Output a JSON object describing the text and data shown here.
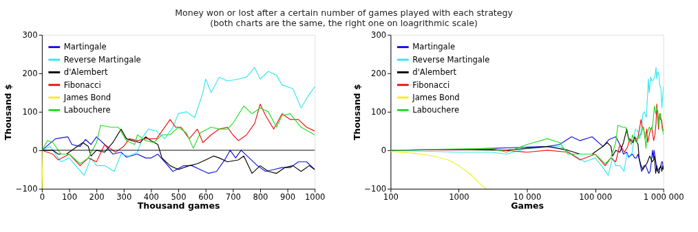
{
  "chart_data": [
    {
      "type": "line",
      "title": "Money won or lost after a certain number of games played with each strategy",
      "subtitle": "(both charts are the same, the right one on loagrithmic scale)",
      "xlabel": "Thousand games",
      "ylabel": "Thousand $",
      "xlim": [
        0,
        1000
      ],
      "ylim": [
        -100,
        300
      ],
      "xticks": [
        0,
        100,
        200,
        300,
        400,
        500,
        600,
        700,
        800,
        900,
        1000
      ],
      "yticks": [
        -100,
        0,
        100,
        200,
        300
      ],
      "grid": false,
      "legend": "top left",
      "marker": "none",
      "line_style": "solid",
      "ref_lines": [
        {
          "axis": "y",
          "value": 0,
          "color": "#000000"
        }
      ],
      "series": [
        {
          "name": "Martingale",
          "color": "#1010e0",
          "x": [
            0,
            50,
            95,
            110,
            140,
            160,
            180,
            200,
            230,
            260,
            290,
            310,
            350,
            380,
            400,
            425,
            450,
            480,
            520,
            550,
            580,
            610,
            640,
            670,
            690,
            710,
            730,
            760,
            790,
            820,
            850,
            880,
            910,
            940,
            970,
            1000
          ],
          "values": [
            0,
            30,
            35,
            15,
            10,
            28,
            15,
            35,
            15,
            -10,
            -5,
            -18,
            -10,
            -20,
            -20,
            -10,
            -30,
            -55,
            -40,
            -40,
            -50,
            -60,
            -55,
            -25,
            0,
            -20,
            0,
            -20,
            -40,
            -55,
            -50,
            -45,
            -45,
            -30,
            -30,
            -50
          ]
        },
        {
          "name": "Reverse Martingale",
          "color": "#33e6f0",
          "x": [
            0,
            30,
            70,
            100,
            130,
            155,
            180,
            200,
            230,
            265,
            290,
            320,
            350,
            370,
            390,
            420,
            450,
            480,
            500,
            530,
            560,
            590,
            600,
            620,
            650,
            680,
            720,
            750,
            780,
            800,
            830,
            860,
            880,
            920,
            950,
            975,
            1000
          ],
          "values": [
            0,
            10,
            -30,
            -20,
            -45,
            -65,
            -20,
            -40,
            -40,
            -55,
            -10,
            -15,
            -5,
            35,
            55,
            50,
            30,
            60,
            95,
            100,
            85,
            150,
            185,
            150,
            190,
            180,
            185,
            190,
            215,
            185,
            205,
            195,
            170,
            160,
            110,
            140,
            165
          ]
        },
        {
          "name": "d'Alembert",
          "color": "#000000",
          "x": [
            0,
            40,
            60,
            90,
            130,
            150,
            170,
            180,
            200,
            230,
            260,
            290,
            310,
            330,
            360,
            380,
            400,
            425,
            440,
            470,
            500,
            540,
            570,
            600,
            630,
            650,
            680,
            720,
            740,
            770,
            800,
            830,
            860,
            890,
            920,
            950,
            980,
            1000
          ],
          "values": [
            0,
            0,
            -10,
            -10,
            10,
            20,
            10,
            -15,
            0,
            -5,
            20,
            55,
            30,
            25,
            20,
            35,
            25,
            15,
            -20,
            -40,
            -50,
            -40,
            -35,
            -25,
            -15,
            -20,
            -30,
            -25,
            -15,
            -60,
            -40,
            -55,
            -60,
            -45,
            -40,
            -55,
            -40,
            -50
          ]
        },
        {
          "name": "Fibonacci",
          "color": "#ee1111",
          "x": [
            0,
            40,
            60,
            100,
            140,
            170,
            200,
            230,
            270,
            300,
            320,
            350,
            380,
            420,
            450,
            470,
            490,
            510,
            540,
            570,
            590,
            620,
            650,
            680,
            700,
            720,
            750,
            780,
            800,
            820,
            850,
            880,
            910,
            940,
            970,
            1000
          ],
          "values": [
            0,
            -10,
            -25,
            -10,
            -40,
            -20,
            -30,
            15,
            -5,
            10,
            30,
            25,
            30,
            30,
            60,
            80,
            60,
            60,
            30,
            55,
            20,
            40,
            55,
            60,
            40,
            25,
            40,
            70,
            120,
            90,
            55,
            95,
            80,
            80,
            60,
            50
          ]
        },
        {
          "name": "James Bond",
          "color": "#f0f020",
          "x": [
            0.1,
            2.5
          ],
          "values": [
            0,
            -100
          ]
        },
        {
          "name": "Labouchere",
          "color": "#22dd22",
          "x": [
            0,
            20,
            40,
            70,
            100,
            140,
            170,
            200,
            215,
            250,
            280,
            310,
            340,
            350,
            380,
            410,
            440,
            470,
            500,
            530,
            555,
            580,
            620,
            650,
            680,
            700,
            740,
            770,
            800,
            830,
            860,
            880,
            910,
            950,
            1000
          ],
          "values": [
            0,
            25,
            20,
            -10,
            -10,
            -35,
            -20,
            20,
            65,
            60,
            60,
            25,
            15,
            40,
            25,
            20,
            40,
            40,
            60,
            45,
            5,
            45,
            60,
            55,
            55,
            70,
            115,
            95,
            110,
            100,
            60,
            90,
            95,
            60,
            40
          ]
        }
      ]
    },
    {
      "type": "line",
      "xlabel": "Games",
      "ylabel": "Thousand $",
      "log": "x",
      "xlim": [
        100,
        1000000
      ],
      "ylim": [
        -100,
        300
      ],
      "xticks": [
        100,
        1000,
        {
          "value": 10000,
          "label": "10 000"
        },
        {
          "value": 100000,
          "label": "100 000"
        },
        {
          "value": 1000000,
          "label": "1 000 000"
        }
      ],
      "yticks": [
        -100,
        0,
        100,
        200,
        300
      ],
      "grid": false,
      "legend": "top left",
      "marker": "none",
      "line_style": "solid",
      "series": [
        {
          "name": "Martingale",
          "color": "#1010e0",
          "x": [
            100,
            1000,
            3000,
            10000,
            20000,
            30000,
            45000,
            60000,
            90000,
            130000,
            160000,
            200000,
            230000,
            260000,
            290000,
            310000,
            350000,
            380000,
            400000,
            425000,
            450000,
            480000,
            520000,
            550000,
            580000,
            610000,
            640000,
            670000,
            690000,
            710000,
            730000,
            760000,
            790000,
            820000,
            850000,
            880000,
            910000,
            940000,
            970000,
            1000000
          ],
          "values": [
            0,
            2,
            5,
            8,
            10,
            15,
            35,
            25,
            35,
            10,
            28,
            35,
            15,
            -10,
            -5,
            -18,
            -10,
            -20,
            -20,
            -10,
            -30,
            -55,
            -40,
            -40,
            -50,
            -60,
            -55,
            -25,
            0,
            -20,
            0,
            -20,
            -40,
            -55,
            -50,
            -45,
            -45,
            -30,
            -30,
            -50
          ]
        },
        {
          "name": "Reverse Martingale",
          "color": "#33e6f0",
          "x": [
            100,
            1000,
            3000,
            5000,
            10000,
            30000,
            70000,
            100000,
            130000,
            155000,
            180000,
            200000,
            230000,
            265000,
            290000,
            320000,
            350000,
            370000,
            390000,
            420000,
            450000,
            480000,
            500000,
            530000,
            560000,
            590000,
            600000,
            620000,
            650000,
            680000,
            720000,
            750000,
            780000,
            800000,
            830000,
            860000,
            880000,
            920000,
            950000,
            975000,
            1000000
          ],
          "values": [
            0,
            -5,
            -5,
            -10,
            5,
            10,
            -30,
            -20,
            -45,
            -65,
            -20,
            -40,
            -40,
            -55,
            -10,
            -15,
            -5,
            35,
            55,
            50,
            30,
            60,
            95,
            100,
            85,
            150,
            185,
            150,
            190,
            180,
            185,
            190,
            215,
            185,
            205,
            195,
            170,
            160,
            110,
            140,
            165
          ]
        },
        {
          "name": "d'Alembert",
          "color": "#000000",
          "x": [
            100,
            1000,
            5000,
            10000,
            20000,
            40000,
            60000,
            90000,
            130000,
            150000,
            170000,
            180000,
            200000,
            230000,
            260000,
            290000,
            310000,
            330000,
            360000,
            380000,
            400000,
            425000,
            440000,
            470000,
            500000,
            540000,
            570000,
            600000,
            630000,
            650000,
            680000,
            720000,
            740000,
            770000,
            800000,
            830000,
            860000,
            890000,
            920000,
            950000,
            980000,
            1000000
          ],
          "values": [
            0,
            2,
            0,
            5,
            10,
            0,
            -10,
            -10,
            10,
            20,
            10,
            -15,
            0,
            -5,
            20,
            55,
            30,
            25,
            20,
            35,
            25,
            15,
            -20,
            -40,
            -50,
            -40,
            -35,
            -25,
            -15,
            -20,
            -30,
            -25,
            -15,
            -60,
            -40,
            -55,
            -60,
            -45,
            -40,
            -55,
            -40,
            -50
          ]
        },
        {
          "name": "Fibonacci",
          "color": "#ee1111",
          "x": [
            100,
            3000,
            10000,
            20000,
            40000,
            60000,
            100000,
            140000,
            170000,
            200000,
            230000,
            270000,
            300000,
            320000,
            350000,
            380000,
            420000,
            450000,
            470000,
            490000,
            510000,
            540000,
            570000,
            590000,
            620000,
            650000,
            680000,
            700000,
            720000,
            750000,
            780000,
            800000,
            820000,
            850000,
            880000,
            910000,
            940000,
            970000,
            1000000
          ],
          "values": [
            0,
            3,
            -5,
            0,
            -5,
            -25,
            -10,
            -40,
            -20,
            -30,
            15,
            -5,
            10,
            30,
            25,
            30,
            30,
            60,
            80,
            60,
            60,
            30,
            55,
            20,
            40,
            55,
            60,
            40,
            25,
            40,
            70,
            120,
            90,
            55,
            95,
            80,
            80,
            60,
            50
          ]
        },
        {
          "name": "James Bond",
          "color": "#f0f020",
          "x": [
            100,
            200,
            400,
            700,
            1000,
            1500,
            2000,
            2500
          ],
          "values": [
            -3,
            -7,
            -14,
            -25,
            -40,
            -63,
            -85,
            -100
          ]
        },
        {
          "name": "Labouchere",
          "color": "#22dd22",
          "x": [
            100,
            3000,
            5000,
            10000,
            20000,
            30000,
            40000,
            70000,
            100000,
            140000,
            170000,
            200000,
            215000,
            250000,
            280000,
            310000,
            340000,
            350000,
            380000,
            410000,
            440000,
            470000,
            500000,
            530000,
            555000,
            580000,
            620000,
            650000,
            680000,
            700000,
            740000,
            770000,
            800000,
            830000,
            860000,
            880000,
            910000,
            950000,
            1000000
          ],
          "values": [
            0,
            5,
            -5,
            15,
            30,
            20,
            -10,
            -10,
            -10,
            -35,
            -20,
            20,
            65,
            60,
            60,
            25,
            15,
            40,
            25,
            20,
            40,
            40,
            60,
            45,
            5,
            45,
            60,
            55,
            55,
            70,
            115,
            95,
            110,
            100,
            60,
            90,
            95,
            60,
            40
          ]
        }
      ]
    }
  ]
}
